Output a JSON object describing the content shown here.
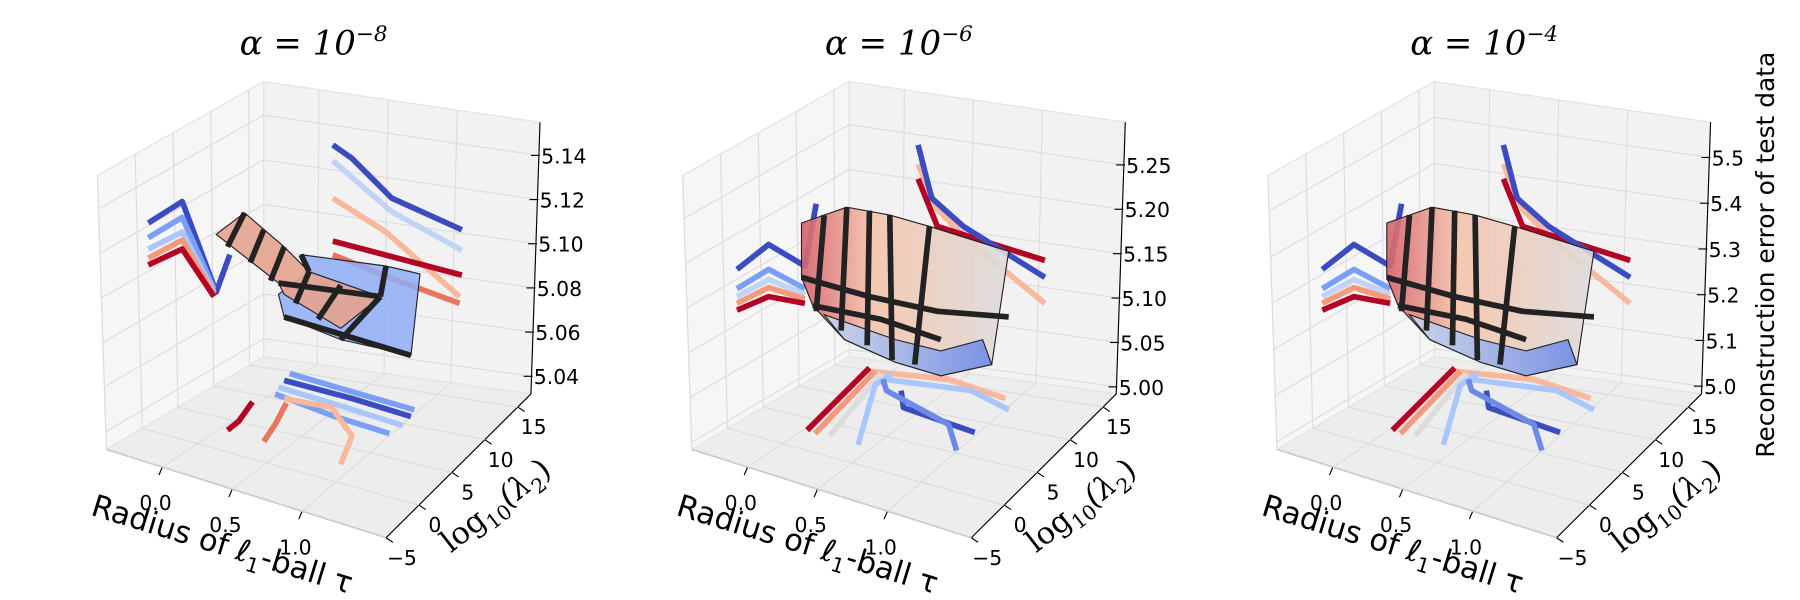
{
  "charts": [
    {
      "type": "surface3d",
      "title": {
        "base": "α = 10",
        "exponent": "−8"
      },
      "xlabel": {
        "pre": "Radius of ℓ",
        "sub": "1",
        "post": "-ball τ"
      },
      "ylabel": {
        "pre": "log",
        "sub": "10",
        "mid": "(λ",
        "sub2": "2",
        "post": ")"
      },
      "xlim": [
        -0.4,
        1.6
      ],
      "xticks": [
        {
          "value": 0,
          "label": "0.0"
        },
        0.5,
        {
          "value": 1,
          "label": "1.0"
        }
      ],
      "ylim": [
        -5,
        17
      ],
      "yticks": [
        {
          "value": -5,
          "label": "−5"
        },
        0,
        5,
        10,
        15
      ],
      "zlim": [
        5.032,
        5.155
      ],
      "zticks": [
        5.04,
        5.06,
        5.08,
        {
          "value": 5.1,
          "label": "5.10"
        },
        5.12,
        5.14
      ],
      "grid": true
    },
    {
      "type": "surface3d",
      "title": {
        "base": "α = 10",
        "exponent": "−6"
      },
      "xlabel": {
        "pre": "Radius of ℓ",
        "sub": "1",
        "post": "-ball τ"
      },
      "ylabel": {
        "pre": "log",
        "sub": "10",
        "mid": "(λ",
        "sub2": "2",
        "post": ")"
      },
      "xlim": [
        -0.4,
        1.6
      ],
      "xticks": [
        {
          "value": 0,
          "label": "0.0"
        },
        0.5,
        {
          "value": 1,
          "label": "1.0"
        }
      ],
      "ylim": [
        -5,
        17
      ],
      "yticks": [
        {
          "value": -5,
          "label": "−5"
        },
        0,
        5,
        10,
        15
      ],
      "zlim": [
        4.992,
        5.298
      ],
      "zticks": [
        {
          "value": 5,
          "label": "5.00"
        },
        5.05,
        {
          "value": 5.1,
          "label": "5.10"
        },
        5.15,
        {
          "value": 5.2,
          "label": "5.20"
        },
        5.25
      ],
      "grid": true
    },
    {
      "type": "surface3d",
      "title": {
        "base": "α = 10",
        "exponent": "−4"
      },
      "xlabel": {
        "pre": "Radius of ℓ",
        "sub": "1",
        "post": "-ball τ"
      },
      "ylabel": {
        "pre": "log",
        "sub": "10",
        "mid": "(λ",
        "sub2": "2",
        "post": ")"
      },
      "zlabel": "Reconstruction error of test data",
      "xlim": [
        -0.4,
        1.6
      ],
      "xticks": [
        {
          "value": 0,
          "label": "0.0"
        },
        0.5,
        {
          "value": 1,
          "label": "1.0"
        }
      ],
      "ylim": [
        -5,
        17
      ],
      "yticks": [
        {
          "value": -5,
          "label": "−5"
        },
        0,
        5,
        10,
        15
      ],
      "zlim": [
        4.983,
        5.577
      ],
      "zticks": [
        {
          "value": 5,
          "label": "5.0"
        },
        5.1,
        5.2,
        5.3,
        5.4,
        5.5
      ],
      "grid": true
    }
  ]
}
